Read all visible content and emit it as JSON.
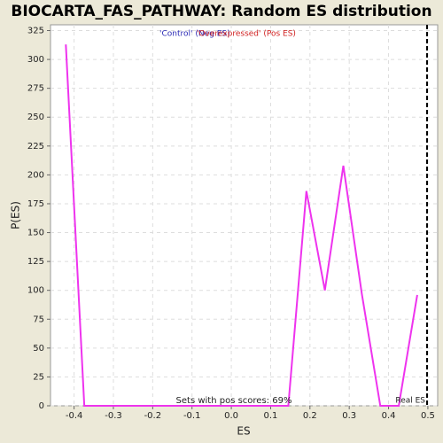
{
  "chart_data": {
    "type": "line",
    "title": "BIOCARTA_FAS_PATHWAY: Random ES distribution",
    "x_label": "ES",
    "y_label": "P(ES)",
    "legend": [
      "'Control' (Neg ES)",
      "'Overexpressed' (Pos ES)"
    ],
    "legend_colors": [
      "#2b2bb5",
      "#d02020"
    ],
    "annotation": "Sets with pos scores: 69%",
    "real_es": {
      "value": 0.498,
      "label": "Real ES"
    },
    "x": [
      -0.421,
      -0.374,
      0.145,
      0.191,
      0.238,
      0.285,
      0.332,
      0.379,
      0.426,
      0.473
    ],
    "series": [
      {
        "name": "P(ES)",
        "color": "#ee33ee",
        "values": [
          313,
          0,
          0,
          186,
          100,
          208,
          97,
          0,
          0,
          96
        ]
      }
    ],
    "xlim": [
      -0.46,
      0.525
    ],
    "ylim": [
      0,
      330
    ],
    "xticks": [
      -0.4,
      -0.3,
      -0.2,
      -0.1,
      {
        "value": 0,
        "label": "0.0"
      },
      0.1,
      0.2,
      0.3,
      0.4,
      0.5
    ],
    "yticks": [
      0,
      25,
      50,
      75,
      100,
      125,
      150,
      175,
      200,
      225,
      250,
      275,
      300,
      325
    ],
    "grid": true
  }
}
